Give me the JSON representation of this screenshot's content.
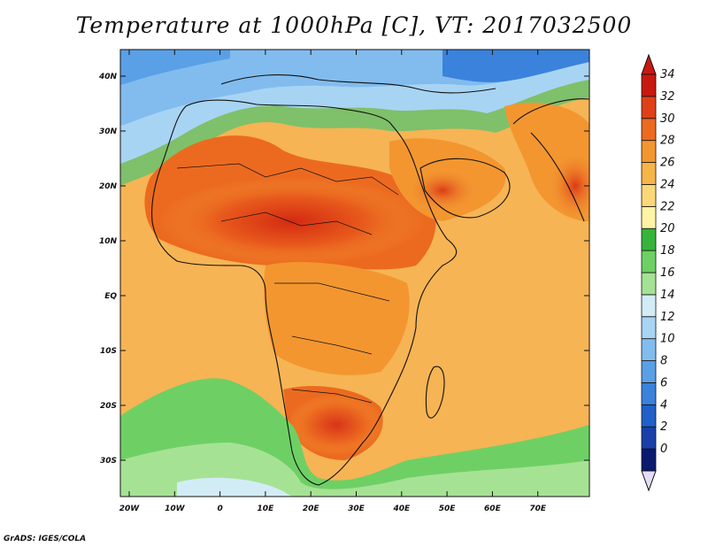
{
  "title": "Temperature at 1000hPa [C], VT: 2017032500",
  "credit": "GrADS: IGES/COLA",
  "map": {
    "lat_ticks": [
      "40N",
      "30N",
      "20N",
      "10N",
      "EQ",
      "10S",
      "20S",
      "30S"
    ],
    "lon_ticks": [
      "20W",
      "10W",
      "0",
      "10E",
      "20E",
      "30E",
      "40E",
      "50E",
      "60E",
      "70E"
    ]
  },
  "colorbar": {
    "levels": [
      "34",
      "32",
      "30",
      "28",
      "26",
      "24",
      "22",
      "20",
      "18",
      "16",
      "14",
      "12",
      "10",
      "8",
      "6",
      "4",
      "2",
      "0"
    ],
    "colors": [
      "#0a1a6e",
      "#1a3fa8",
      "#2060c8",
      "#3a82dc",
      "#5aa0e6",
      "#82bcee",
      "#a8d4f4",
      "#d2ecf6",
      "#a6e294",
      "#6ed064",
      "#36b43a",
      "#fff3a6",
      "#fad878",
      "#f7b448",
      "#f39630",
      "#ec6a20",
      "#e04018",
      "#c81810"
    ],
    "under_color": "#e4dcf8",
    "over_color": "#c81810"
  }
}
